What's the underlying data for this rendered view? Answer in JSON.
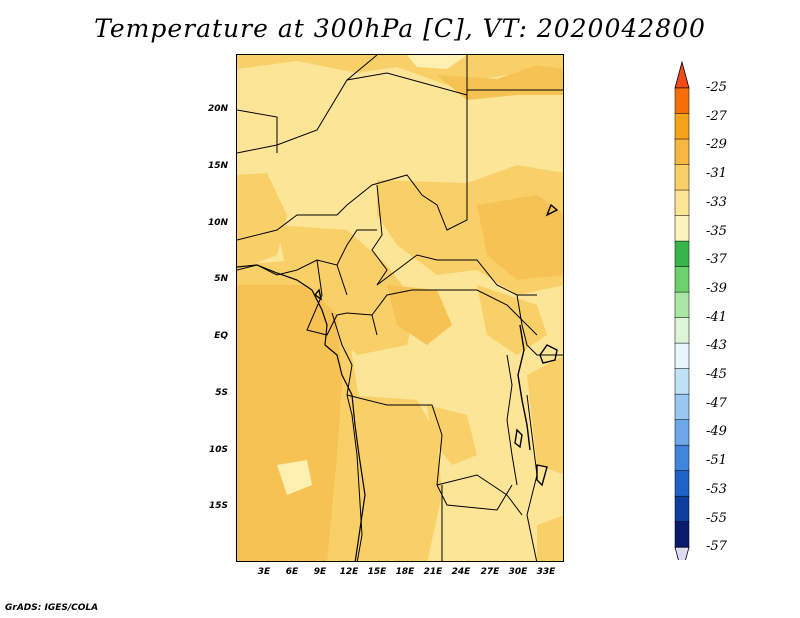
{
  "title": "Temperature at 300hPa [C], VT: 2020042800",
  "credit": "GrADS: IGES/COLA",
  "map": {
    "projection": "latlon",
    "lon_range": [
      0,
      35
    ],
    "lat_range": [
      -20,
      25
    ],
    "lat_ticks": [
      {
        "value": 20,
        "label": "20N"
      },
      {
        "value": 15,
        "label": "15N"
      },
      {
        "value": 10,
        "label": "10N"
      },
      {
        "value": 5,
        "label": "5N"
      },
      {
        "value": 0,
        "label": "EQ"
      },
      {
        "value": -5,
        "label": "5S"
      },
      {
        "value": -10,
        "label": "10S"
      },
      {
        "value": -15,
        "label": "15S"
      }
    ],
    "lon_ticks": [
      {
        "value": 3,
        "label": "3E"
      },
      {
        "value": 6,
        "label": "6E"
      },
      {
        "value": 9,
        "label": "9E"
      },
      {
        "value": 12,
        "label": "12E"
      },
      {
        "value": 15,
        "label": "15E"
      },
      {
        "value": 18,
        "label": "18E"
      },
      {
        "value": 21,
        "label": "21E"
      },
      {
        "value": 24,
        "label": "24E"
      },
      {
        "value": 27,
        "label": "27E"
      },
      {
        "value": 30,
        "label": "30E"
      },
      {
        "value": 33,
        "label": "33E"
      }
    ]
  },
  "colorbar": {
    "labels": [
      "-25",
      "-27",
      "-29",
      "-31",
      "-33",
      "-35",
      "-37",
      "-39",
      "-41",
      "-43",
      "-45",
      "-47",
      "-49",
      "-51",
      "-53",
      "-55",
      "-57"
    ],
    "colors": [
      "#f04a1c",
      "#f66e0a",
      "#f4a31a",
      "#f6b640",
      "#f9d068",
      "#fde597",
      "#fdf3bd",
      "#36b54a",
      "#6dd26d",
      "#a8e8a4",
      "#dbf5d6",
      "#e6f6fb",
      "#c1e1f7",
      "#98c8f1",
      "#6ca8ea",
      "#3f85dc",
      "#1f63c8",
      "#0f3f9e",
      "#0a1b6e",
      "#dcdcf4"
    ]
  }
}
